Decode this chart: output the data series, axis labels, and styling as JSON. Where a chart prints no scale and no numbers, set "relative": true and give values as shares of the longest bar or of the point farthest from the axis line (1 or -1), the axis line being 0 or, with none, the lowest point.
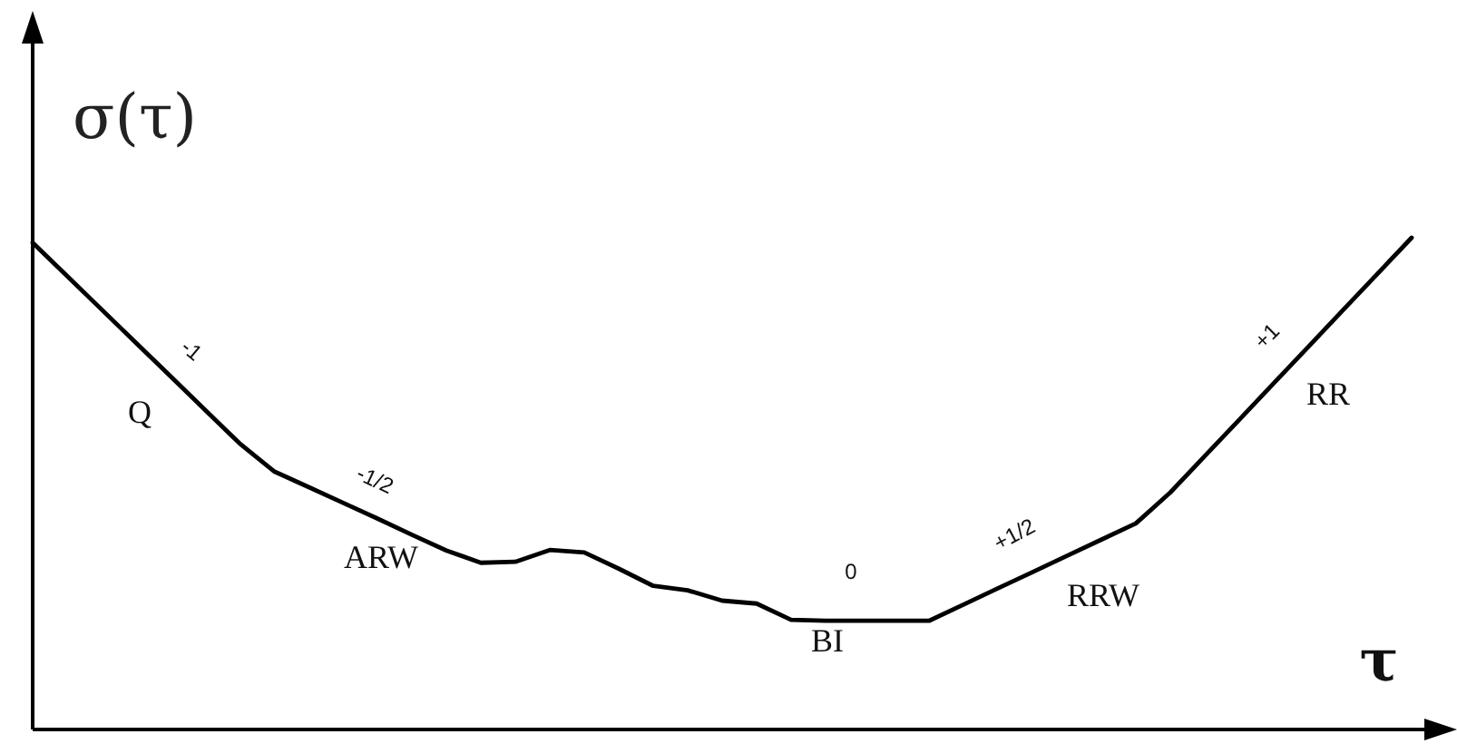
{
  "chart_data": {
    "type": "line",
    "relative": true,
    "xlabel": "τ",
    "ylabel": "σ(τ)",
    "color": "#000000",
    "categories": [
      null,
      null,
      null,
      null,
      null,
      null,
      null,
      null,
      null,
      null,
      null,
      null,
      null,
      null,
      null,
      null,
      null,
      null,
      null,
      null,
      null,
      null,
      null,
      null,
      null,
      null,
      null,
      null,
      null,
      null,
      null,
      null,
      null,
      null,
      null,
      null,
      null,
      null,
      null,
      null,
      null
    ],
    "values": [
      0.99,
      0.922,
      0.854,
      0.786,
      0.718,
      0.65,
      0.582,
      0.525,
      0.493,
      0.461,
      0.429,
      0.396,
      0.364,
      0.339,
      0.341,
      0.365,
      0.36,
      0.327,
      0.292,
      0.283,
      0.262,
      0.256,
      0.223,
      0.221,
      0.221,
      0.221,
      0.221,
      0.254,
      0.287,
      0.32,
      0.353,
      0.386,
      0.419,
      0.482,
      0.556,
      0.63,
      0.704,
      0.778,
      0.852,
      0.926,
      1.0
    ],
    "annotations": [
      "-1",
      "Q",
      "-1/2",
      "ARW",
      "0",
      "BI",
      "+1/2",
      "RRW",
      "+1",
      "RR"
    ]
  }
}
